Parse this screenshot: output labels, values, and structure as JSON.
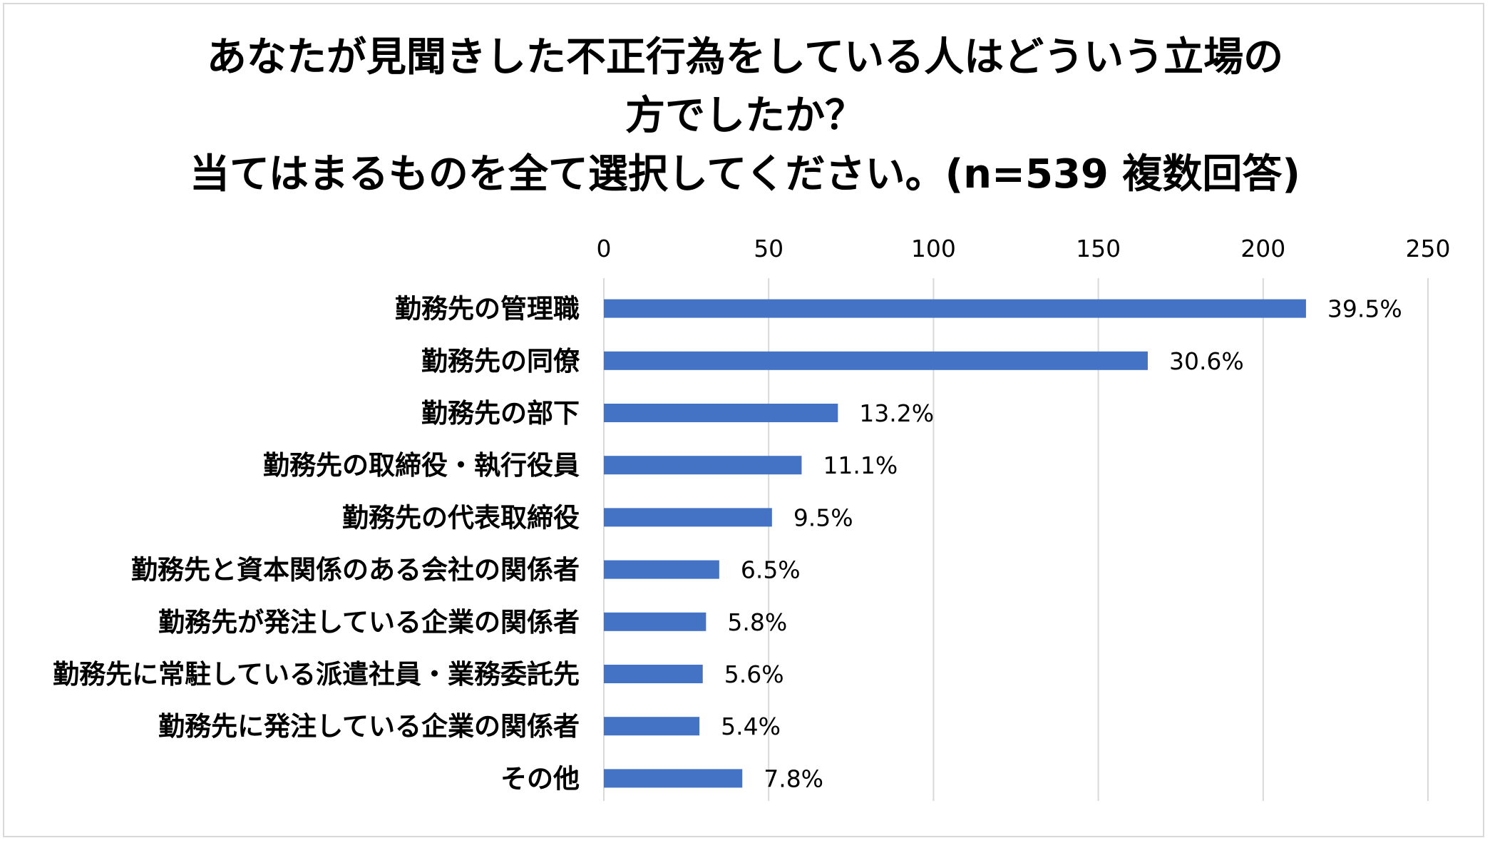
{
  "chart_data": {
    "type": "bar",
    "orientation": "horizontal",
    "title_lines": [
      "あなたが見聞きした不正行為をしている人はどういう立場の",
      "方でしたか？",
      "当てはまるものを全て選択してください。(n=539 複数回答)"
    ],
    "categories": [
      "勤務先の管理職",
      "勤務先の同僚",
      "勤務先の部下",
      "勤務先の取締役・執行役員",
      "勤務先の代表取締役",
      "勤務先と資本関係のある会社の関係者",
      "勤務先が発注している企業の関係者",
      "勤務先に常駐している派遣社員・業務委託先",
      "勤務先に発注している企業の関係者",
      "その他"
    ],
    "values": [
      213,
      165,
      71,
      60,
      51,
      35,
      31,
      30,
      29,
      42
    ],
    "data_labels": [
      "39.5%",
      "30.6%",
      "13.2%",
      "11.1%",
      "9.5%",
      "6.5%",
      "5.8%",
      "5.6%",
      "5.4%",
      "7.8%"
    ],
    "xlim": [
      0,
      250
    ],
    "xticks": [
      0,
      50,
      100,
      150,
      200,
      250
    ],
    "tick_labels": [
      "0",
      "50",
      "100",
      "150",
      "200",
      "250"
    ],
    "axis_position": "top",
    "grid": true,
    "bar_color": "#4472c4",
    "gridline_color": "#d9d9d9"
  }
}
